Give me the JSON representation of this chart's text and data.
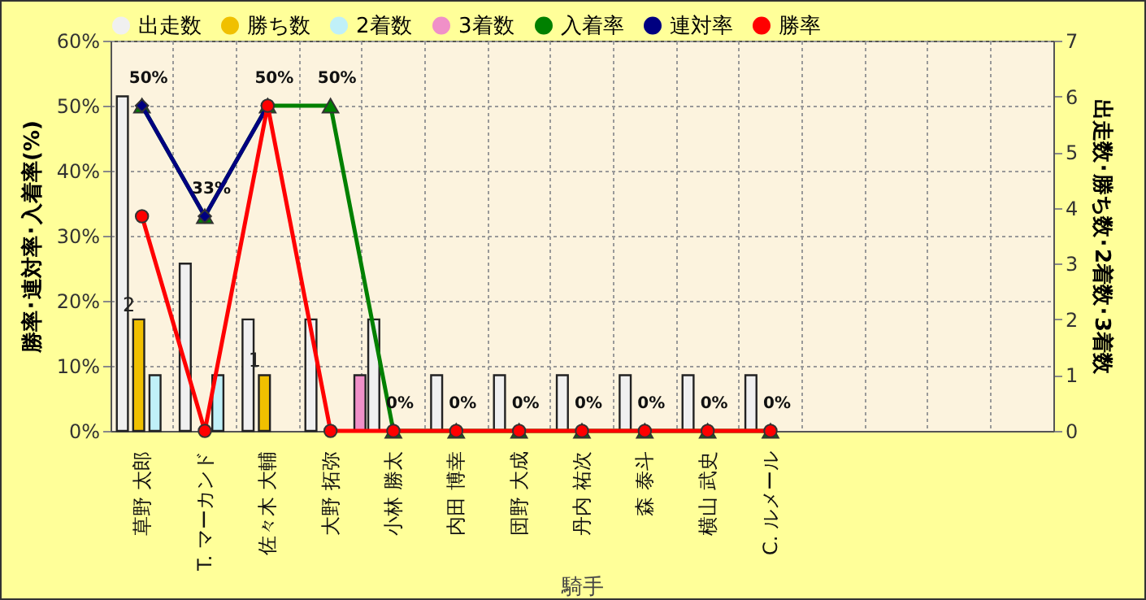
{
  "chart_data": {
    "type": "bar",
    "xlabel": "騎手",
    "ylabel": "勝率･連対率･入着率(%)",
    "y2label": "出走数･勝ち数･2着数･3着数",
    "categories": [
      "草野 太郎",
      "T. マーカンド",
      "佐々木 大輔",
      "大野 拓弥",
      "小林 勝太",
      "内田 博幸",
      "団野 大成",
      "丹内 祐次",
      "森 泰斗",
      "横山 武史",
      "C. ルメール",
      null,
      null,
      null,
      null
    ],
    "series": [
      {
        "name": "出走数",
        "axis": "y2",
        "color": "#f0f0f0",
        "values": [
          6,
          3,
          2,
          2,
          2,
          1,
          1,
          1,
          1,
          1,
          1,
          null,
          null,
          null,
          null
        ]
      },
      {
        "name": "勝ち数",
        "axis": "y2",
        "color": "#f0c000",
        "values": [
          2,
          0,
          1,
          0,
          0,
          0,
          0,
          0,
          0,
          0,
          0,
          null,
          null,
          null,
          null
        ],
        "value_labels": [
          "2",
          null,
          "1",
          null,
          null,
          null,
          null,
          null,
          null,
          null,
          null,
          null,
          null,
          null,
          null
        ]
      },
      {
        "name": "2着数",
        "axis": "y2",
        "color": "#c0f0f8",
        "values": [
          1,
          1,
          0,
          0,
          0,
          0,
          0,
          0,
          0,
          0,
          0,
          null,
          null,
          null,
          null
        ]
      },
      {
        "name": "3着数",
        "axis": "y2",
        "color": "#f090c8",
        "values": [
          0,
          0,
          0,
          1,
          0,
          0,
          0,
          0,
          0,
          0,
          0,
          null,
          null,
          null,
          null
        ]
      },
      {
        "name": "入着率",
        "type": "line",
        "color": "#008000",
        "marker": "triangle",
        "values": [
          50,
          33,
          50,
          50,
          0,
          0,
          0,
          0,
          0,
          0,
          0,
          null,
          null,
          null,
          null
        ],
        "value_labels": [
          "50%",
          "33%",
          "50%",
          "50%",
          "0%",
          "0%",
          "0%",
          "0%",
          "0%",
          "0%",
          "0%",
          null,
          null,
          null,
          null
        ]
      },
      {
        "name": "連対率",
        "type": "line",
        "color": "#000080",
        "marker": "diamond",
        "values": [
          50,
          33,
          50,
          null,
          null,
          null,
          null,
          null,
          null,
          null,
          null,
          null,
          null,
          null,
          null
        ]
      },
      {
        "name": "勝率",
        "type": "line",
        "color": "#ff0000",
        "marker": "circle",
        "values": [
          33,
          0,
          50,
          0,
          0,
          0,
          0,
          0,
          0,
          0,
          0,
          null,
          null,
          null,
          null
        ]
      }
    ],
    "ylim": [
      0,
      60
    ],
    "yticks": [
      {
        "value": 0,
        "label": "0%"
      },
      {
        "value": 10,
        "label": "10%"
      },
      {
        "value": 20,
        "label": "20%"
      },
      {
        "value": 30,
        "label": "30%"
      },
      {
        "value": 40,
        "label": "40%"
      },
      {
        "value": 50,
        "label": "50%"
      },
      {
        "value": 60,
        "label": "60%"
      }
    ],
    "y2lim": [
      0,
      7
    ],
    "y2ticks": [
      0,
      1,
      2,
      3,
      4,
      5,
      6,
      7
    ],
    "grid": true,
    "legend": "top"
  }
}
